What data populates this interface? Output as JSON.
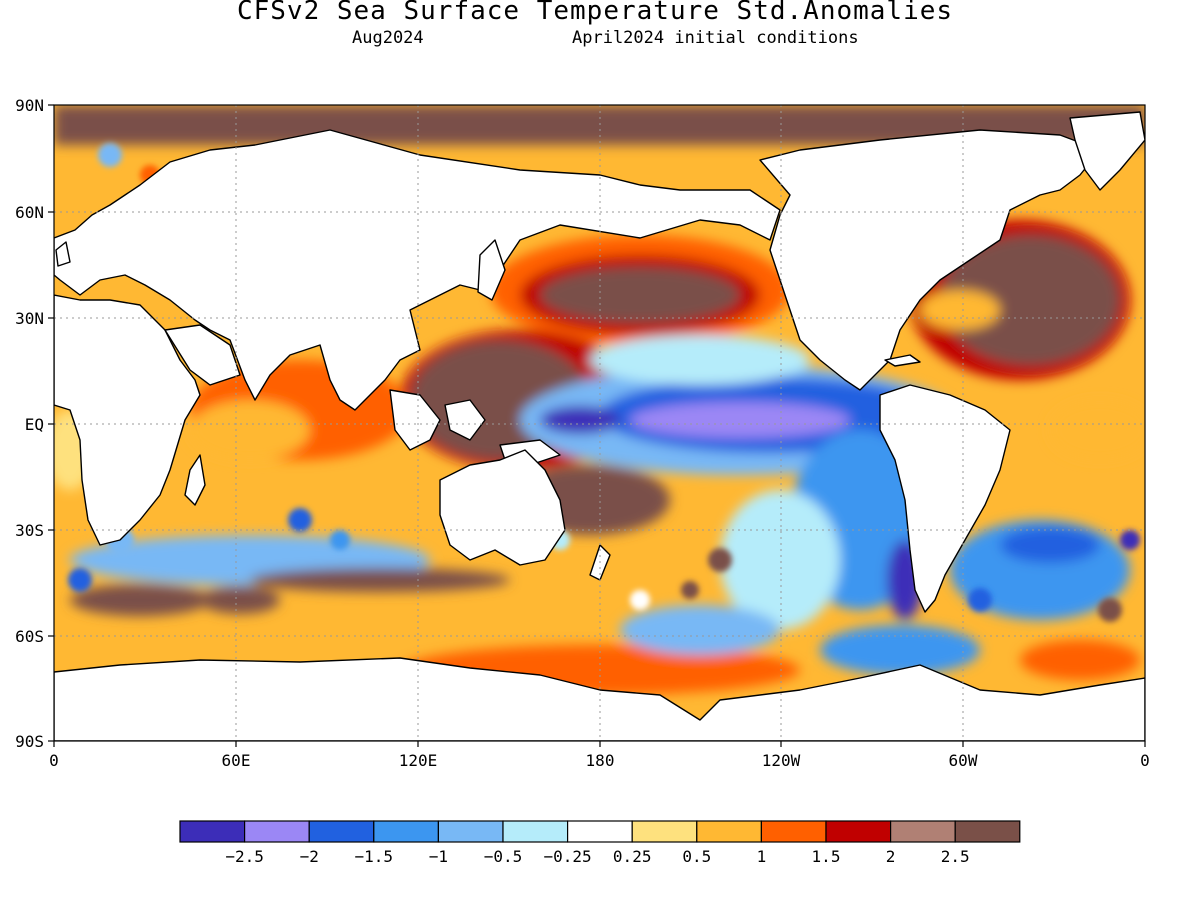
{
  "title": "CFSv2 Sea Surface Temperature Std.Anomalies",
  "subtitle_left": "Aug2024",
  "subtitle_right": "April2024 initial conditions",
  "lat_labels": [
    "90N",
    "60N",
    "30N",
    "EQ",
    "30S",
    "60S",
    "90S"
  ],
  "lon_labels": [
    "0",
    "60E",
    "120E",
    "180",
    "120W",
    "60W",
    "0"
  ],
  "legend": {
    "colors": [
      "#3c2db8",
      "#9b87f5",
      "#2161e0",
      "#3c96f0",
      "#78b8f5",
      "#b5ecfa",
      "#ffffff",
      "#fee17e",
      "#ffb833",
      "#ff6000",
      "#c00000",
      "#b08074",
      "#7a5048"
    ],
    "labels": [
      "-2.5",
      "-2",
      "-1.5",
      "-1",
      "-0.5",
      "-0.25",
      "0.25",
      "0.5",
      "1",
      "1.5",
      "2",
      "2.5"
    ]
  },
  "colors": {
    "land": "#ffffff",
    "coast": "#000000",
    "grid": "#999999"
  }
}
